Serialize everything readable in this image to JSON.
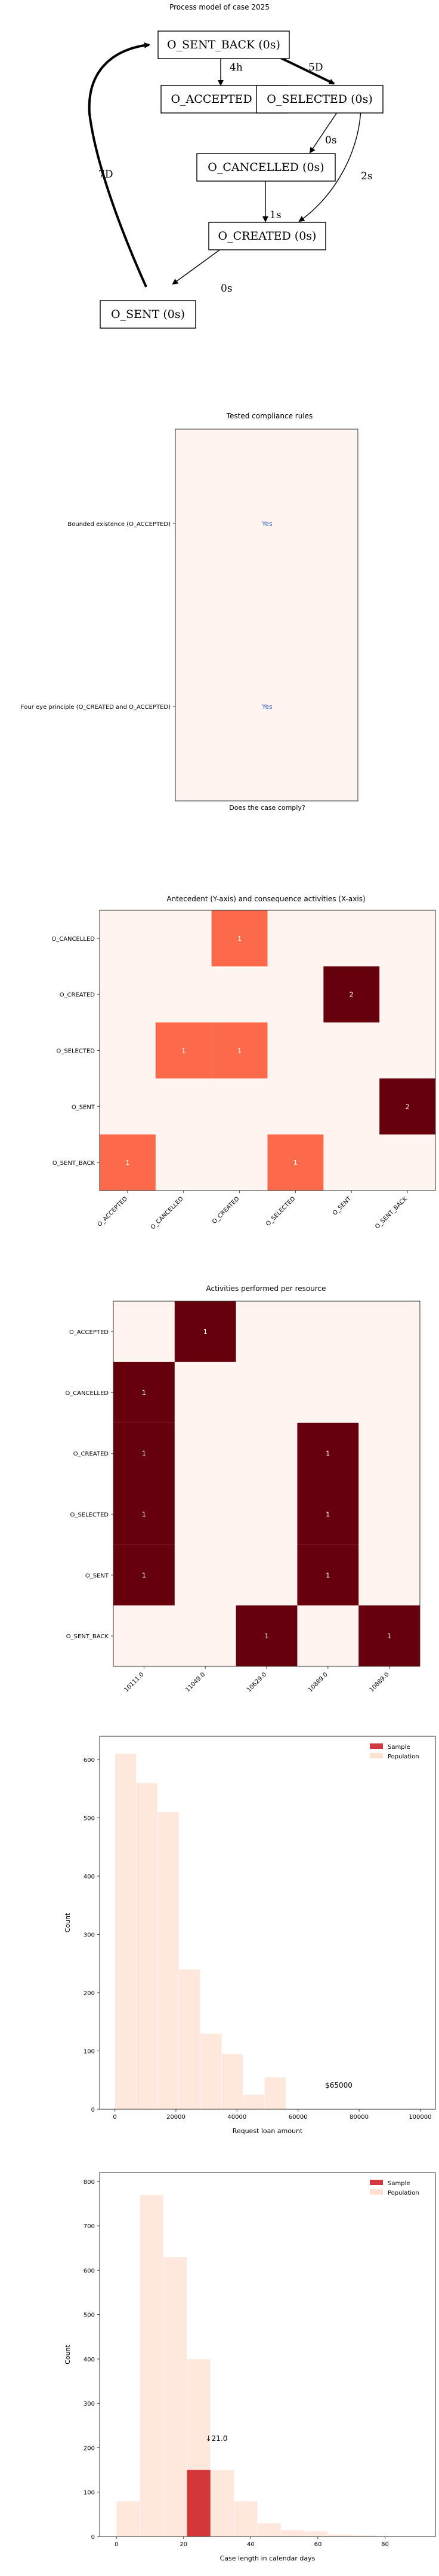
{
  "chart_data": [
    {
      "type": "diagram",
      "title": "Process model of case 2025",
      "nodes": [
        {
          "id": "sent_back",
          "label": "O_SENT_BACK (0s)"
        },
        {
          "id": "accepted",
          "label": "O_ACCEPTED (0s)"
        },
        {
          "id": "selected",
          "label": "O_SELECTED (0s)"
        },
        {
          "id": "cancelled",
          "label": "O_CANCELLED (0s)"
        },
        {
          "id": "created",
          "label": "O_CREATED (0s)"
        },
        {
          "id": "sent",
          "label": "O_SENT (0s)"
        }
      ],
      "edges": [
        {
          "from": "sent_back",
          "to": "accepted",
          "label": "4h"
        },
        {
          "from": "sent_back",
          "to": "selected",
          "label": "5D"
        },
        {
          "from": "selected",
          "to": "cancelled",
          "label": "0s"
        },
        {
          "from": "selected",
          "to": "created",
          "label": "2s"
        },
        {
          "from": "cancelled",
          "to": "created",
          "label": "1s"
        },
        {
          "from": "created",
          "to": "sent",
          "label": "0s"
        },
        {
          "from": "sent",
          "to": "sent_back",
          "label": "7D"
        }
      ]
    },
    {
      "type": "table",
      "title": "Tested compliance rules",
      "xlabel": "Does the case comply?",
      "rows": [
        "Bounded existence (O_ACCEPTED)",
        "Four eye principle (O_CREATED and O_ACCEPTED)"
      ],
      "values": [
        "Yes",
        "Yes"
      ]
    },
    {
      "type": "heatmap",
      "title": "Antecedent (Y-axis) and consequence activities (X-axis)",
      "x": [
        "O_ACCEPTED",
        "O_CANCELLED",
        "O_CREATED",
        "O_SELECTED",
        "O_SENT",
        "O_SENT_BACK"
      ],
      "y": [
        "O_CANCELLED",
        "O_CREATED",
        "O_SELECTED",
        "O_SENT",
        "O_SENT_BACK"
      ],
      "values": [
        [
          0,
          0,
          1,
          0,
          0,
          0
        ],
        [
          0,
          0,
          0,
          0,
          2,
          0
        ],
        [
          0,
          1,
          1,
          0,
          0,
          0
        ],
        [
          0,
          0,
          0,
          0,
          0,
          2
        ],
        [
          1,
          0,
          0,
          1,
          0,
          0
        ]
      ],
      "vmax": 2
    },
    {
      "type": "heatmap",
      "title": "Activities performed per resource",
      "x": [
        "10111.0",
        "11049.0",
        "10629.0",
        "10889.0",
        "10889.0"
      ],
      "y": [
        "O_ACCEPTED",
        "O_CANCELLED",
        "O_CREATED",
        "O_SELECTED",
        "O_SENT",
        "O_SENT_BACK"
      ],
      "values": [
        [
          0,
          1,
          0,
          0,
          0
        ],
        [
          1,
          0,
          0,
          0,
          0
        ],
        [
          1,
          0,
          0,
          1,
          0
        ],
        [
          1,
          0,
          0,
          1,
          0
        ],
        [
          1,
          0,
          0,
          1,
          0
        ],
        [
          0,
          0,
          1,
          0,
          1
        ]
      ],
      "vmax": 1
    },
    {
      "type": "bar",
      "xlabel": "Request loan amount",
      "ylabel": "Count",
      "xlim": [
        -5000,
        105000
      ],
      "ylim": [
        0,
        640
      ],
      "xticks": [
        0,
        20000,
        40000,
        60000,
        80000,
        100000
      ],
      "yticks": [
        0,
        100,
        200,
        300,
        400,
        500,
        600
      ],
      "legend": [
        "Sample",
        "Population"
      ],
      "legend_position": "top-right",
      "population": {
        "bin_edges": [
          0,
          7000,
          14000,
          21000,
          28000,
          35000,
          42000,
          49000,
          56000
        ],
        "counts": [
          610,
          560,
          510,
          240,
          130,
          95,
          25,
          55
        ]
      },
      "sample_value": 65000,
      "annotation": "$65000"
    },
    {
      "type": "bar",
      "xlabel": "Case length in calendar days",
      "ylabel": "Count",
      "xlim": [
        -5,
        95
      ],
      "ylim": [
        0,
        820
      ],
      "xticks": [
        0,
        20,
        40,
        60,
        80
      ],
      "yticks": [
        0,
        100,
        200,
        300,
        400,
        500,
        600,
        700,
        800
      ],
      "legend": [
        "Sample",
        "Population"
      ],
      "legend_position": "top-right",
      "population": {
        "bin_edges": [
          0,
          7,
          14,
          21,
          28,
          35,
          42,
          49,
          56,
          63,
          70,
          77
        ],
        "counts": [
          80,
          770,
          630,
          400,
          150,
          80,
          30,
          15,
          12,
          5,
          3
        ]
      },
      "sample_bin": [
        21,
        28
      ],
      "sample_count": 150,
      "annotation": "↓21.0"
    }
  ]
}
